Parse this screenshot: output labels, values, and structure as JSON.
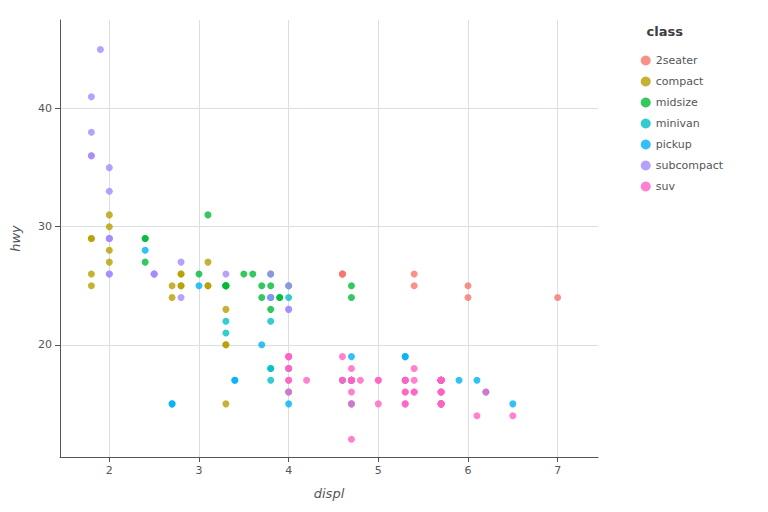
{
  "chart_data": {
    "type": "scatter",
    "title": "class",
    "xlabel": "displ",
    "ylabel": "hwy",
    "xlim": [
      1.45,
      7.45
    ],
    "ylim": [
      10.5,
      47.5
    ],
    "xticks": [
      2,
      3,
      4,
      5,
      6,
      7
    ],
    "yticks": [
      20,
      30,
      40
    ],
    "grid": true,
    "legend": "right",
    "marker": "circle",
    "series": [
      {
        "name": "2seater",
        "color": "#F8766D",
        "x": [
          4.6,
          4.6,
          4.6,
          5.4,
          5.4,
          6.0,
          6.0,
          7.0
        ],
        "values": [
          26,
          26,
          26,
          26,
          25,
          25,
          24,
          24
        ]
      },
      {
        "name": "compact",
        "color": "#B79F00",
        "x": [
          1.8,
          1.8,
          2.0,
          2.0,
          2.8,
          2.8,
          3.1,
          1.8,
          1.8,
          2.0,
          2.0,
          2.8,
          2.8,
          3.1,
          3.1,
          2.7,
          2.7,
          3.3,
          3.3,
          3.3,
          3.3
        ],
        "values": [
          29,
          29,
          31,
          30,
          26,
          26,
          27,
          26,
          25,
          28,
          27,
          25,
          25,
          25,
          25,
          24,
          25,
          23,
          20,
          15,
          20
        ]
      },
      {
        "name": "midsize",
        "color": "#00BA38",
        "x": [
          2.4,
          2.4,
          3.1,
          3.5,
          3.6,
          2.4,
          3.0,
          3.3,
          3.3,
          3.3,
          3.3,
          3.8,
          3.8,
          3.8,
          4.0,
          3.7,
          3.7,
          3.9,
          3.9,
          4.7,
          4.7
        ],
        "values": [
          29,
          29,
          31,
          26,
          26,
          27,
          26,
          25,
          25,
          25,
          25,
          25,
          26,
          23,
          25,
          24,
          25,
          24,
          24,
          25,
          24
        ]
      },
      {
        "name": "minivan",
        "color": "#00BFC4",
        "x": [
          3.8,
          3.8,
          3.8,
          4.0,
          3.3,
          3.3,
          3.8,
          3.8,
          3.8,
          4.0,
          4.6
        ],
        "values": [
          22,
          24,
          24,
          24,
          22,
          21,
          18,
          18,
          17,
          18,
          17
        ]
      },
      {
        "name": "pickup",
        "color": "#00B0F6",
        "x": [
          2.4,
          3.0,
          3.7,
          4.7,
          4.7,
          4.7,
          5.7,
          5.7,
          6.1,
          5.3,
          5.3,
          5.3,
          5.7,
          6.5,
          2.7,
          2.7,
          3.4,
          3.4,
          4.0,
          4.7,
          4.0,
          4.7,
          4.7,
          5.7,
          5.7,
          5.9,
          6.2
        ],
        "values": [
          28,
          25,
          20,
          19,
          17,
          17,
          17,
          17,
          17,
          19,
          19,
          17,
          17,
          15,
          15,
          15,
          17,
          17,
          15,
          17,
          16,
          15,
          17,
          15,
          17,
          17,
          16
        ]
      },
      {
        "name": "subcompact",
        "color": "#A58AFF",
        "x": [
          1.8,
          1.8,
          2.0,
          2.0,
          2.8,
          2.8,
          3.8,
          1.9,
          2.0,
          2.0,
          2.0,
          2.0,
          2.0,
          2.5,
          1.8,
          1.8,
          2.5,
          2.5,
          3.3,
          3.8,
          4.0,
          4.0,
          4.0
        ],
        "values": [
          36,
          36,
          29,
          26,
          27,
          24,
          26,
          45,
          35,
          33,
          29,
          26,
          29,
          26,
          41,
          38,
          26,
          26,
          26,
          24,
          25,
          23,
          23
        ]
      },
      {
        "name": "suv",
        "color": "#FF61C3",
        "x": [
          5.7,
          5.7,
          4.7,
          4.7,
          4.7,
          4.7,
          4.7,
          4.7,
          4.7,
          5.7,
          5.7,
          6.1,
          4.0,
          4.0,
          4.6,
          5.4,
          5.4,
          4.0,
          4.0,
          4.6,
          5.0,
          4.2,
          5.3,
          5.3,
          5.3,
          4.8,
          5.3,
          5.7,
          6.5,
          4.7,
          4.7,
          4.7,
          5.7,
          5.7,
          4.6,
          5.4,
          5.4,
          4.0,
          4.0,
          4.0,
          4.0,
          5.3,
          5.3,
          5.3,
          5.7,
          5.7,
          5.7,
          6.2,
          5.7,
          5.7,
          5.7,
          5.7,
          5.0,
          5.7,
          5.7,
          5.7,
          5.7,
          5.0,
          5.7,
          5.7
        ],
        "values": [
          15,
          17,
          17,
          17,
          16,
          15,
          17,
          17,
          12,
          17,
          16,
          14,
          19,
          18,
          17,
          16,
          16,
          17,
          16,
          17,
          15,
          17,
          16,
          17,
          15,
          17,
          15,
          17,
          14,
          17,
          17,
          18,
          17,
          16,
          19,
          18,
          17,
          19,
          19,
          18,
          17,
          17,
          17,
          16,
          15,
          17,
          15,
          16,
          15,
          17,
          16,
          17,
          17,
          17,
          16,
          15,
          17,
          17,
          17,
          17
        ]
      }
    ]
  }
}
